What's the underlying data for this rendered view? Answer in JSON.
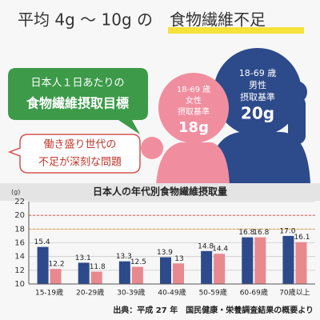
{
  "header": {
    "title_plain": "平均 4g 〜 10g の",
    "title_highlight": "食物繊維不足"
  },
  "target_bubble": {
    "lines": [
      "日本人１日あたりの",
      "食物繊維摂取目標"
    ]
  },
  "female": {
    "age": "18-69 歳",
    "sex": "女性",
    "label": "摂取基準",
    "amount": "18g"
  },
  "male": {
    "age": "18-69 歳",
    "sex": "男性",
    "label": "摂取基準",
    "amount": "20g"
  },
  "problem_bubble": {
    "lines": [
      "働き盛り世代の",
      "不足が深刻な問題"
    ]
  },
  "chart_data": {
    "type": "bar",
    "title": "日本人の年代別食物繊維摂取量",
    "y_label": "(g)",
    "categories": [
      "15-19歳",
      "20-29歳",
      "30-39歳",
      "40-49歳",
      "50-59歳",
      "60-69歳",
      "70歳以上"
    ],
    "series": [
      {
        "color": "#2d4a8a",
        "values": [
          15.4,
          13.1,
          13.3,
          13.9,
          14.8,
          16.8,
          17.0
        ],
        "value_labels": [
          "15.4",
          "13.1",
          "13.3",
          "13.9",
          "14.8",
          "16.8",
          "17.0"
        ]
      },
      {
        "color": "#e8898e",
        "values": [
          12.2,
          11.8,
          12.5,
          13.0,
          14.4,
          16.8,
          16.1
        ]
      }
    ],
    "ylim": [
      10,
      22
    ],
    "yticks": [
      10,
      12,
      14,
      16,
      18,
      20,
      22
    ],
    "grid": true,
    "reference_lines": [
      {
        "value": 18,
        "color": "#e59a4a"
      },
      {
        "value": 20,
        "color": "#e0605a"
      }
    ]
  },
  "source": "出典：平成 27 年　国民健康・栄養調査結果の概要より"
}
